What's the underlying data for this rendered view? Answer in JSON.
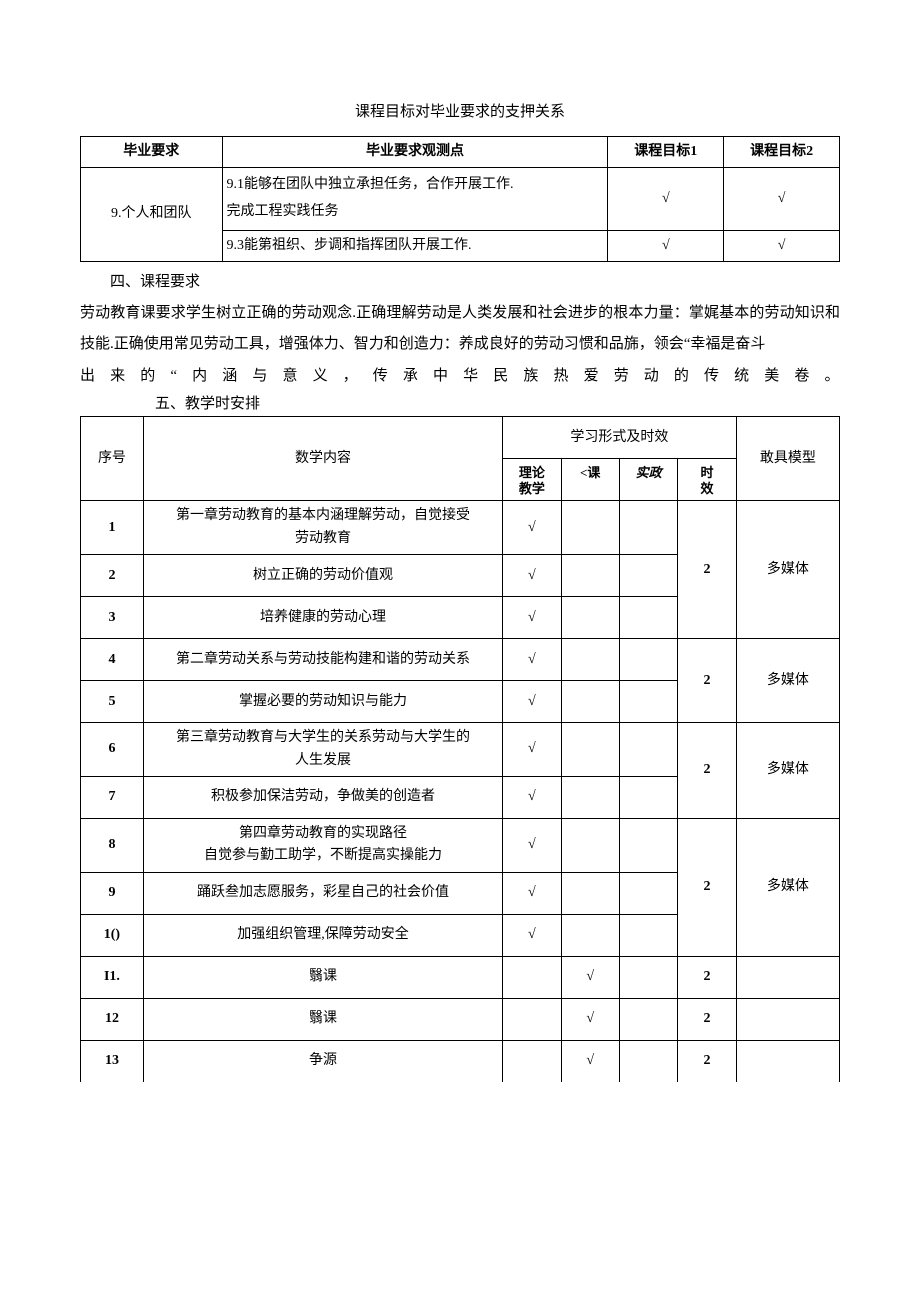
{
  "title1": "课程目标对毕业要求的支押关系",
  "table1": {
    "headers": [
      "毕业要求",
      "毕业要求观测点",
      "课程目标1",
      "课程目标2"
    ],
    "req_label": "9.个人和团队",
    "rows": [
      {
        "obs": "9.1能够在团队中独立承担任务，合作开展工作.\n完成工程实践任务",
        "g1": "√",
        "g2": "√"
      },
      {
        "obs": "9.3能第祖织、步调和指挥团队开展工作.",
        "g1": "√",
        "g2": "√"
      }
    ]
  },
  "section4": {
    "heading": "四、课程要求",
    "para1": "劳动教育课要求学生树立正确的劳动观念.正确理解劳动是人类发展和社会进步的根本力量：掌娓基本的劳动知识和技能.正确使用常见劳动工具，增强体力、智力和创造力：养成良好的劳动习惯和品旆，领会“幸福是奋斗",
    "para2": "出来的“内涵与意义，传承中华民族热爱劳动的传统美卷。"
  },
  "section5": {
    "heading": "五、教学时安排",
    "headers": {
      "seq": "序号",
      "content": "数学内容",
      "form_group": "学习形式及时效",
      "model": "敢具模型",
      "theory": "理论\n教学",
      "mooc": "<课",
      "practice": "实政",
      "hours": "时\n效"
    },
    "rows": [
      {
        "seq": "1",
        "content": "第一章劳动教育的基本内涵理解劳动，自觉接受\n劳动教育",
        "theory": "√",
        "mooc": "",
        "practice": "",
        "hours": "",
        "model": "",
        "merge_start": true
      },
      {
        "seq": "2",
        "content": "树立正确的劳动价值观",
        "theory": "√",
        "mooc": "",
        "practice": "",
        "hours": "2",
        "model": "多媒体",
        "merge_mid": true
      },
      {
        "seq": "3",
        "content": "培养健康的劳动心理",
        "theory": "√",
        "mooc": "",
        "practice": "",
        "hours": "",
        "model": "",
        "merge_end": true
      },
      {
        "seq": "4",
        "content": "第二章劳动关系与劳动技能构建和谐的劳动关系",
        "theory": "√",
        "mooc": "",
        "practice": "",
        "hours": "",
        "model": "",
        "merge_start": true
      },
      {
        "seq": "5",
        "content": "掌握必要的劳动知识与能力",
        "theory": "√",
        "mooc": "",
        "practice": "",
        "hours": "2",
        "model": "多媒体",
        "merge_end2": true
      },
      {
        "seq": "6",
        "content": "第三章劳动教育与大学生的关系劳动与大学生的\n人生发展",
        "theory": "√",
        "mooc": "",
        "practice": "",
        "hours": "",
        "model": "",
        "merge_start": true
      },
      {
        "seq": "7",
        "content": "积极参加保洁劳动，争做美的创造者",
        "theory": "√",
        "mooc": "",
        "practice": "",
        "hours": "2",
        "model": "多媒体",
        "merge_end2": true
      },
      {
        "seq": "8",
        "content": "第四章劳动教育的实现路径\n自觉参与勤工助学，不断提高实操能力",
        "theory": "√",
        "mooc": "",
        "practice": "",
        "hours": "",
        "model": "",
        "merge_start": true
      },
      {
        "seq": "9",
        "content": "踊跃叁加志愿服务，彩星自己的社会价值",
        "theory": "√",
        "mooc": "",
        "practice": "",
        "hours": "2",
        "model": "多媒体",
        "merge_mid": true
      },
      {
        "seq": "1()",
        "content": "加强组织管理,保障劳动安全",
        "theory": "√",
        "mooc": "",
        "practice": "",
        "hours": "",
        "model": "",
        "merge_end": true
      },
      {
        "seq": "I1.",
        "content": "翳课",
        "theory": "",
        "mooc": "√",
        "practice": "",
        "hours": "2",
        "model": ""
      },
      {
        "seq": "12",
        "content": "翳课",
        "theory": "",
        "mooc": "√",
        "practice": "",
        "hours": "2",
        "model": ""
      },
      {
        "seq": "13",
        "content": "争源",
        "theory": "",
        "mooc": "√",
        "practice": "",
        "hours": "2",
        "model": ""
      }
    ]
  },
  "colors": {
    "text": "#000000",
    "background": "#ffffff",
    "border": "#000000"
  }
}
